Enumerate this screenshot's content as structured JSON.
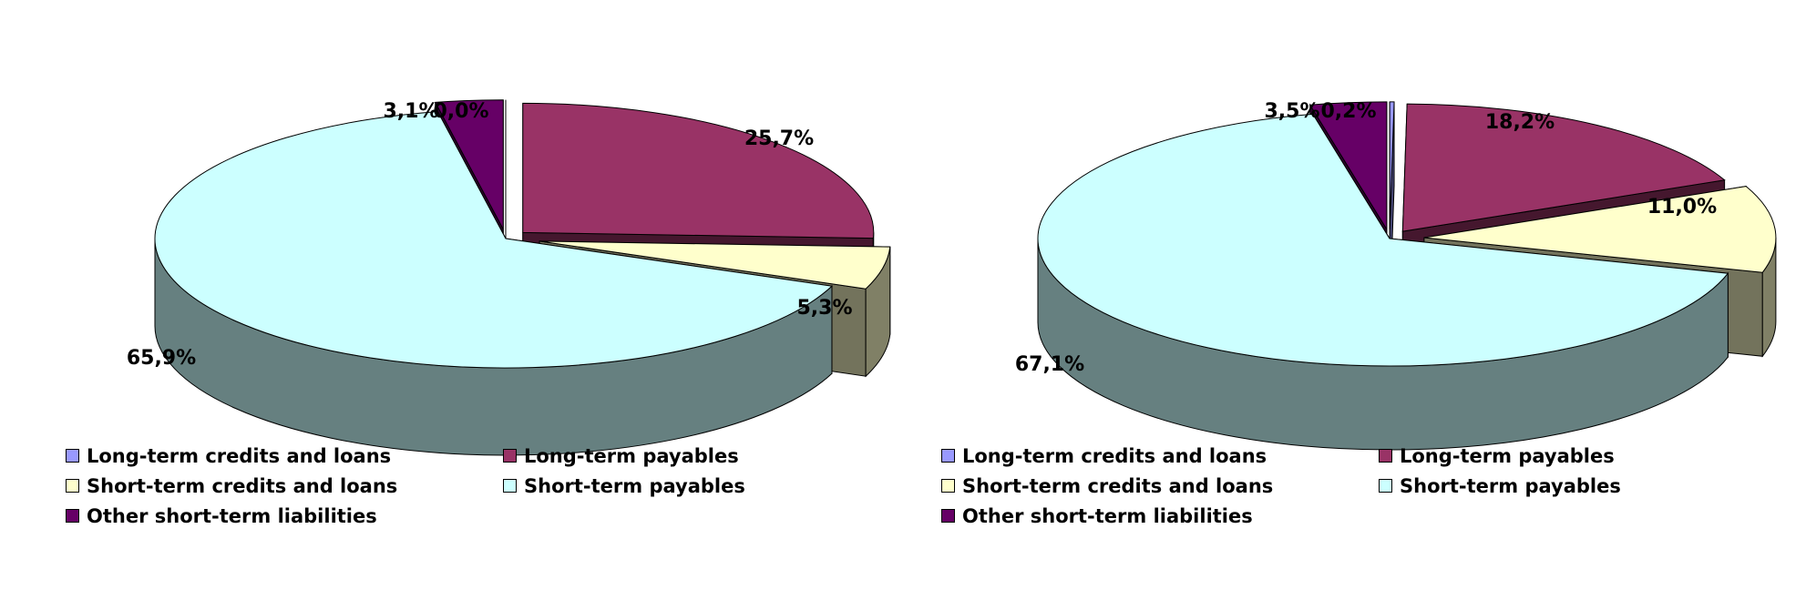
{
  "colors": {
    "long_term_credits": "#9999ff",
    "long_term_payables": "#993366",
    "short_term_credits": "#ffffcc",
    "short_term_payables": "#ccffff",
    "other_short_term": "#660066"
  },
  "chart_data": [
    {
      "type": "pie",
      "style": "3d-exploded",
      "title": "",
      "slices": [
        {
          "name": "Long-term credits and loans",
          "value": 0.0,
          "label": "0,0%",
          "color_key": "long_term_credits"
        },
        {
          "name": "Long-term payables",
          "value": 25.7,
          "label": "25,7%",
          "color_key": "long_term_payables"
        },
        {
          "name": "Short-term credits and loans",
          "value": 5.3,
          "label": "5,3%",
          "color_key": "short_term_credits"
        },
        {
          "name": "Short-term payables",
          "value": 65.9,
          "label": "65,9%",
          "color_key": "short_term_payables"
        },
        {
          "name": "Other short-term liabilities",
          "value": 3.1,
          "label": "3,1%",
          "color_key": "other_short_term"
        }
      ],
      "legend": {
        "placement": "bottom",
        "items": [
          "Long-term credits and loans",
          "Long-term payables",
          "Short-term credits and loans",
          "Short-term payables",
          "Other short-term liabilities"
        ]
      }
    },
    {
      "type": "pie",
      "style": "3d-exploded",
      "title": "",
      "slices": [
        {
          "name": "Long-term credits and loans",
          "value": 0.2,
          "label": "0,2%",
          "color_key": "long_term_credits"
        },
        {
          "name": "Long-term payables",
          "value": 18.2,
          "label": "18,2%",
          "color_key": "long_term_payables"
        },
        {
          "name": "Short-term credits and loans",
          "value": 11.0,
          "label": "11,0%",
          "color_key": "short_term_credits"
        },
        {
          "name": "Short-term payables",
          "value": 67.1,
          "label": "67,1%",
          "color_key": "short_term_payables"
        },
        {
          "name": "Other short-term liabilities",
          "value": 3.5,
          "label": "3,5%",
          "color_key": "other_short_term"
        }
      ],
      "legend": {
        "placement": "bottom",
        "items": [
          "Long-term credits and loans",
          "Long-term payables",
          "Short-term credits and loans",
          "Short-term payables",
          "Other short-term liabilities"
        ]
      }
    }
  ]
}
